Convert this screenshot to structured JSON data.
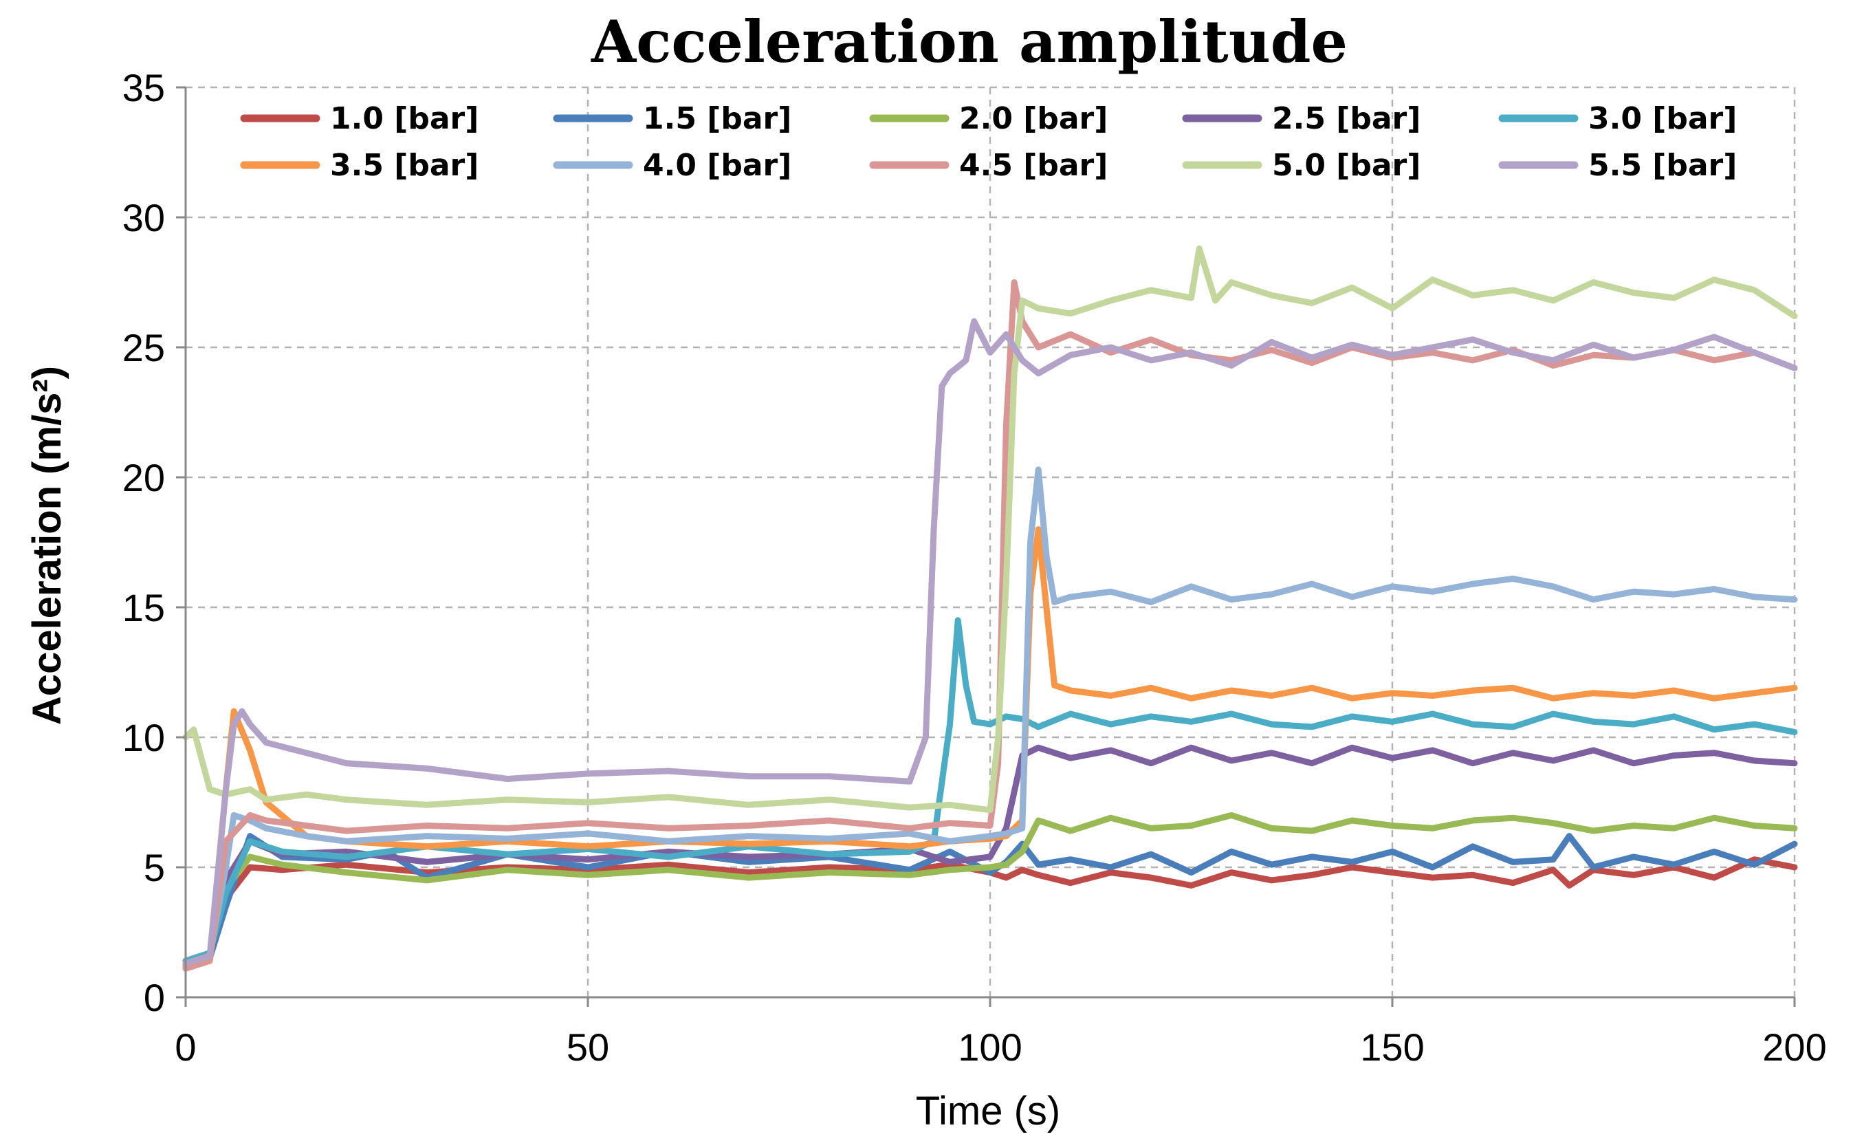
{
  "chart_data": {
    "type": "line",
    "title": "Acceleration amplitude",
    "xlabel": "Time (s)",
    "ylabel": "Acceleration (m/s²)",
    "xlim": [
      0,
      200
    ],
    "ylim": [
      0,
      35
    ],
    "xticks": [
      0,
      50,
      100,
      150,
      200
    ],
    "yticks": [
      0,
      5,
      10,
      15,
      20,
      25,
      30,
      35
    ],
    "grid": true,
    "legend_position": "top",
    "series": [
      {
        "name": "1.0 [bar]",
        "color": "#be4b48",
        "x": [
          0,
          3,
          5,
          8,
          12,
          20,
          30,
          40,
          50,
          60,
          70,
          80,
          90,
          95,
          100,
          102,
          104,
          106,
          110,
          115,
          120,
          125,
          130,
          135,
          140,
          145,
          150,
          155,
          160,
          165,
          170,
          172,
          175,
          180,
          185,
          190,
          195,
          200
        ],
        "y": [
          1.3,
          1.6,
          3.8,
          5.0,
          4.9,
          5.1,
          4.8,
          5.0,
          4.9,
          5.1,
          4.8,
          5.0,
          4.9,
          5.1,
          4.8,
          4.6,
          4.9,
          4.7,
          4.4,
          4.8,
          4.6,
          4.3,
          4.8,
          4.5,
          4.7,
          5.0,
          4.8,
          4.6,
          4.7,
          4.4,
          4.9,
          4.3,
          4.9,
          4.7,
          5.0,
          4.6,
          5.3,
          5.0
        ]
      },
      {
        "name": "1.5 [bar]",
        "color": "#4a7ebb",
        "x": [
          0,
          3,
          5,
          8,
          12,
          20,
          25,
          30,
          40,
          50,
          60,
          70,
          80,
          90,
          95,
          100,
          102,
          104,
          106,
          110,
          115,
          120,
          125,
          130,
          135,
          140,
          145,
          150,
          155,
          160,
          165,
          170,
          172,
          175,
          180,
          185,
          190,
          195,
          200
        ],
        "y": [
          1.2,
          1.5,
          3.5,
          6.2,
          5.4,
          5.3,
          5.6,
          4.6,
          5.5,
          5.0,
          5.6,
          5.2,
          5.4,
          4.9,
          5.6,
          4.8,
          5.2,
          5.9,
          5.1,
          5.3,
          5.0,
          5.5,
          4.8,
          5.6,
          5.1,
          5.4,
          5.2,
          5.6,
          5.0,
          5.8,
          5.2,
          5.3,
          6.2,
          5.0,
          5.4,
          5.1,
          5.6,
          5.1,
          5.9
        ]
      },
      {
        "name": "2.0 [bar]",
        "color": "#98b954",
        "x": [
          0,
          3,
          5,
          8,
          12,
          20,
          30,
          40,
          50,
          60,
          70,
          80,
          90,
          95,
          100,
          102,
          104,
          106,
          110,
          115,
          120,
          125,
          130,
          135,
          140,
          145,
          150,
          155,
          160,
          165,
          170,
          175,
          180,
          185,
          190,
          195,
          200
        ],
        "y": [
          1.4,
          1.7,
          4.2,
          5.4,
          5.1,
          4.8,
          4.5,
          4.9,
          4.7,
          4.9,
          4.6,
          4.8,
          4.7,
          4.9,
          5.0,
          5.1,
          5.6,
          6.8,
          6.4,
          6.9,
          6.5,
          6.6,
          7.0,
          6.5,
          6.4,
          6.8,
          6.6,
          6.5,
          6.8,
          6.9,
          6.7,
          6.4,
          6.6,
          6.5,
          6.9,
          6.6,
          6.5
        ]
      },
      {
        "name": "2.5 [bar]",
        "color": "#7d60a0",
        "x": [
          0,
          3,
          5,
          8,
          12,
          20,
          30,
          40,
          50,
          60,
          70,
          80,
          90,
          95,
          100,
          102,
          104,
          106,
          110,
          115,
          120,
          125,
          130,
          135,
          140,
          145,
          150,
          155,
          160,
          165,
          170,
          175,
          180,
          185,
          190,
          195,
          200
        ],
        "y": [
          1.2,
          1.6,
          4.5,
          6.0,
          5.5,
          5.6,
          5.2,
          5.5,
          5.3,
          5.6,
          5.4,
          5.5,
          5.7,
          5.2,
          5.4,
          6.5,
          9.3,
          9.6,
          9.2,
          9.5,
          9.0,
          9.6,
          9.1,
          9.4,
          9.0,
          9.6,
          9.2,
          9.5,
          9.0,
          9.4,
          9.1,
          9.5,
          9.0,
          9.3,
          9.4,
          9.1,
          9.0
        ]
      },
      {
        "name": "3.0 [bar]",
        "color": "#4aacc5",
        "x": [
          0,
          3,
          5,
          8,
          12,
          20,
          30,
          40,
          50,
          60,
          70,
          80,
          90,
          93,
          95,
          96,
          97,
          98,
          100,
          102,
          104,
          106,
          110,
          115,
          120,
          125,
          130,
          135,
          140,
          145,
          150,
          155,
          160,
          165,
          170,
          175,
          180,
          185,
          190,
          195,
          200
        ],
        "y": [
          1.4,
          1.7,
          4.0,
          6.0,
          5.6,
          5.4,
          5.8,
          5.5,
          5.7,
          5.4,
          5.8,
          5.5,
          5.6,
          6.0,
          10.5,
          14.5,
          12.0,
          10.6,
          10.5,
          10.8,
          10.7,
          10.4,
          10.9,
          10.5,
          10.8,
          10.6,
          10.9,
          10.5,
          10.4,
          10.8,
          10.6,
          10.9,
          10.5,
          10.4,
          10.9,
          10.6,
          10.5,
          10.8,
          10.3,
          10.5,
          10.2
        ]
      },
      {
        "name": "3.5 [bar]",
        "color": "#f79646",
        "x": [
          0,
          3,
          5,
          6,
          8,
          10,
          15,
          20,
          30,
          40,
          50,
          60,
          70,
          80,
          90,
          95,
          100,
          102,
          104,
          105,
          106,
          108,
          110,
          115,
          120,
          125,
          130,
          135,
          140,
          145,
          150,
          155,
          160,
          165,
          170,
          175,
          180,
          185,
          190,
          195,
          200
        ],
        "y": [
          1.2,
          1.5,
          8.0,
          11.0,
          9.5,
          7.5,
          6.2,
          6.0,
          5.8,
          6.0,
          5.8,
          6.0,
          5.9,
          6.0,
          5.8,
          6.0,
          6.1,
          6.2,
          6.8,
          15.5,
          18.0,
          12.0,
          11.8,
          11.6,
          11.9,
          11.5,
          11.8,
          11.6,
          11.9,
          11.5,
          11.7,
          11.6,
          11.8,
          11.9,
          11.5,
          11.7,
          11.6,
          11.8,
          11.5,
          11.7,
          11.9
        ]
      },
      {
        "name": "4.0 [bar]",
        "color": "#94b3d7",
        "x": [
          0,
          3,
          5,
          6,
          8,
          10,
          15,
          20,
          30,
          40,
          50,
          60,
          70,
          80,
          90,
          95,
          100,
          102,
          104,
          105,
          106,
          107,
          108,
          110,
          115,
          120,
          125,
          130,
          135,
          140,
          145,
          150,
          155,
          160,
          165,
          170,
          175,
          180,
          185,
          190,
          195,
          200
        ],
        "y": [
          1.3,
          1.6,
          5.0,
          7.0,
          6.8,
          6.5,
          6.2,
          6.0,
          6.2,
          6.1,
          6.3,
          6.0,
          6.2,
          6.1,
          6.3,
          6.0,
          6.2,
          6.3,
          6.5,
          17.5,
          20.3,
          17.0,
          15.2,
          15.4,
          15.6,
          15.2,
          15.8,
          15.3,
          15.5,
          15.9,
          15.4,
          15.8,
          15.6,
          15.9,
          16.1,
          15.8,
          15.3,
          15.6,
          15.5,
          15.7,
          15.4,
          15.3
        ]
      },
      {
        "name": "4.5 [bar]",
        "color": "#d99694",
        "x": [
          0,
          3,
          5,
          8,
          10,
          15,
          20,
          30,
          40,
          50,
          60,
          70,
          80,
          90,
          95,
          100,
          101,
          102,
          103,
          104,
          106,
          110,
          115,
          120,
          125,
          130,
          135,
          140,
          145,
          150,
          155,
          160,
          165,
          170,
          175,
          180,
          185,
          190,
          195,
          200
        ],
        "y": [
          1.1,
          1.4,
          6.0,
          7.0,
          6.8,
          6.6,
          6.4,
          6.6,
          6.5,
          6.7,
          6.5,
          6.6,
          6.8,
          6.5,
          6.7,
          6.6,
          9.0,
          22.0,
          27.5,
          26.0,
          25.0,
          25.5,
          24.8,
          25.3,
          24.7,
          24.5,
          24.9,
          24.4,
          25.0,
          24.6,
          24.8,
          24.5,
          24.9,
          24.3,
          24.7,
          24.6,
          24.9,
          24.5,
          24.8,
          24.2
        ]
      },
      {
        "name": "5.0 [bar]",
        "color": "#c3d69b",
        "x": [
          0,
          1,
          3,
          5,
          8,
          10,
          15,
          20,
          30,
          40,
          50,
          60,
          70,
          80,
          90,
          95,
          100,
          101,
          102,
          103,
          104,
          106,
          110,
          115,
          120,
          125,
          126,
          128,
          130,
          135,
          140,
          145,
          150,
          155,
          160,
          165,
          170,
          175,
          180,
          185,
          190,
          195,
          200
        ],
        "y": [
          10.0,
          10.3,
          8.0,
          7.8,
          8.0,
          7.6,
          7.8,
          7.6,
          7.4,
          7.6,
          7.5,
          7.7,
          7.4,
          7.6,
          7.3,
          7.4,
          7.2,
          10.0,
          16.0,
          24.0,
          26.8,
          26.5,
          26.3,
          26.8,
          27.2,
          26.9,
          28.8,
          26.8,
          27.5,
          27.0,
          26.7,
          27.3,
          26.5,
          27.6,
          27.0,
          27.2,
          26.8,
          27.5,
          27.1,
          26.9,
          27.6,
          27.2,
          26.2
        ]
      },
      {
        "name": "5.5 [bar]",
        "color": "#b3a2c7",
        "x": [
          0,
          3,
          5,
          6,
          7,
          8,
          10,
          15,
          20,
          30,
          40,
          50,
          60,
          70,
          80,
          90,
          92,
          93,
          94,
          95,
          97,
          98,
          100,
          102,
          104,
          106,
          110,
          115,
          120,
          125,
          130,
          135,
          140,
          145,
          150,
          155,
          160,
          165,
          170,
          175,
          180,
          185,
          190,
          195,
          200
        ],
        "y": [
          1.3,
          1.6,
          8.0,
          10.5,
          11.0,
          10.5,
          9.8,
          9.4,
          9.0,
          8.8,
          8.4,
          8.6,
          8.7,
          8.5,
          8.5,
          8.3,
          10.0,
          18.0,
          23.5,
          24.0,
          24.5,
          26.0,
          24.8,
          25.5,
          24.5,
          24.0,
          24.7,
          25.0,
          24.5,
          24.8,
          24.3,
          25.2,
          24.6,
          25.1,
          24.7,
          25.0,
          25.3,
          24.8,
          24.5,
          25.1,
          24.6,
          24.9,
          25.4,
          24.8,
          24.2
        ]
      }
    ]
  }
}
